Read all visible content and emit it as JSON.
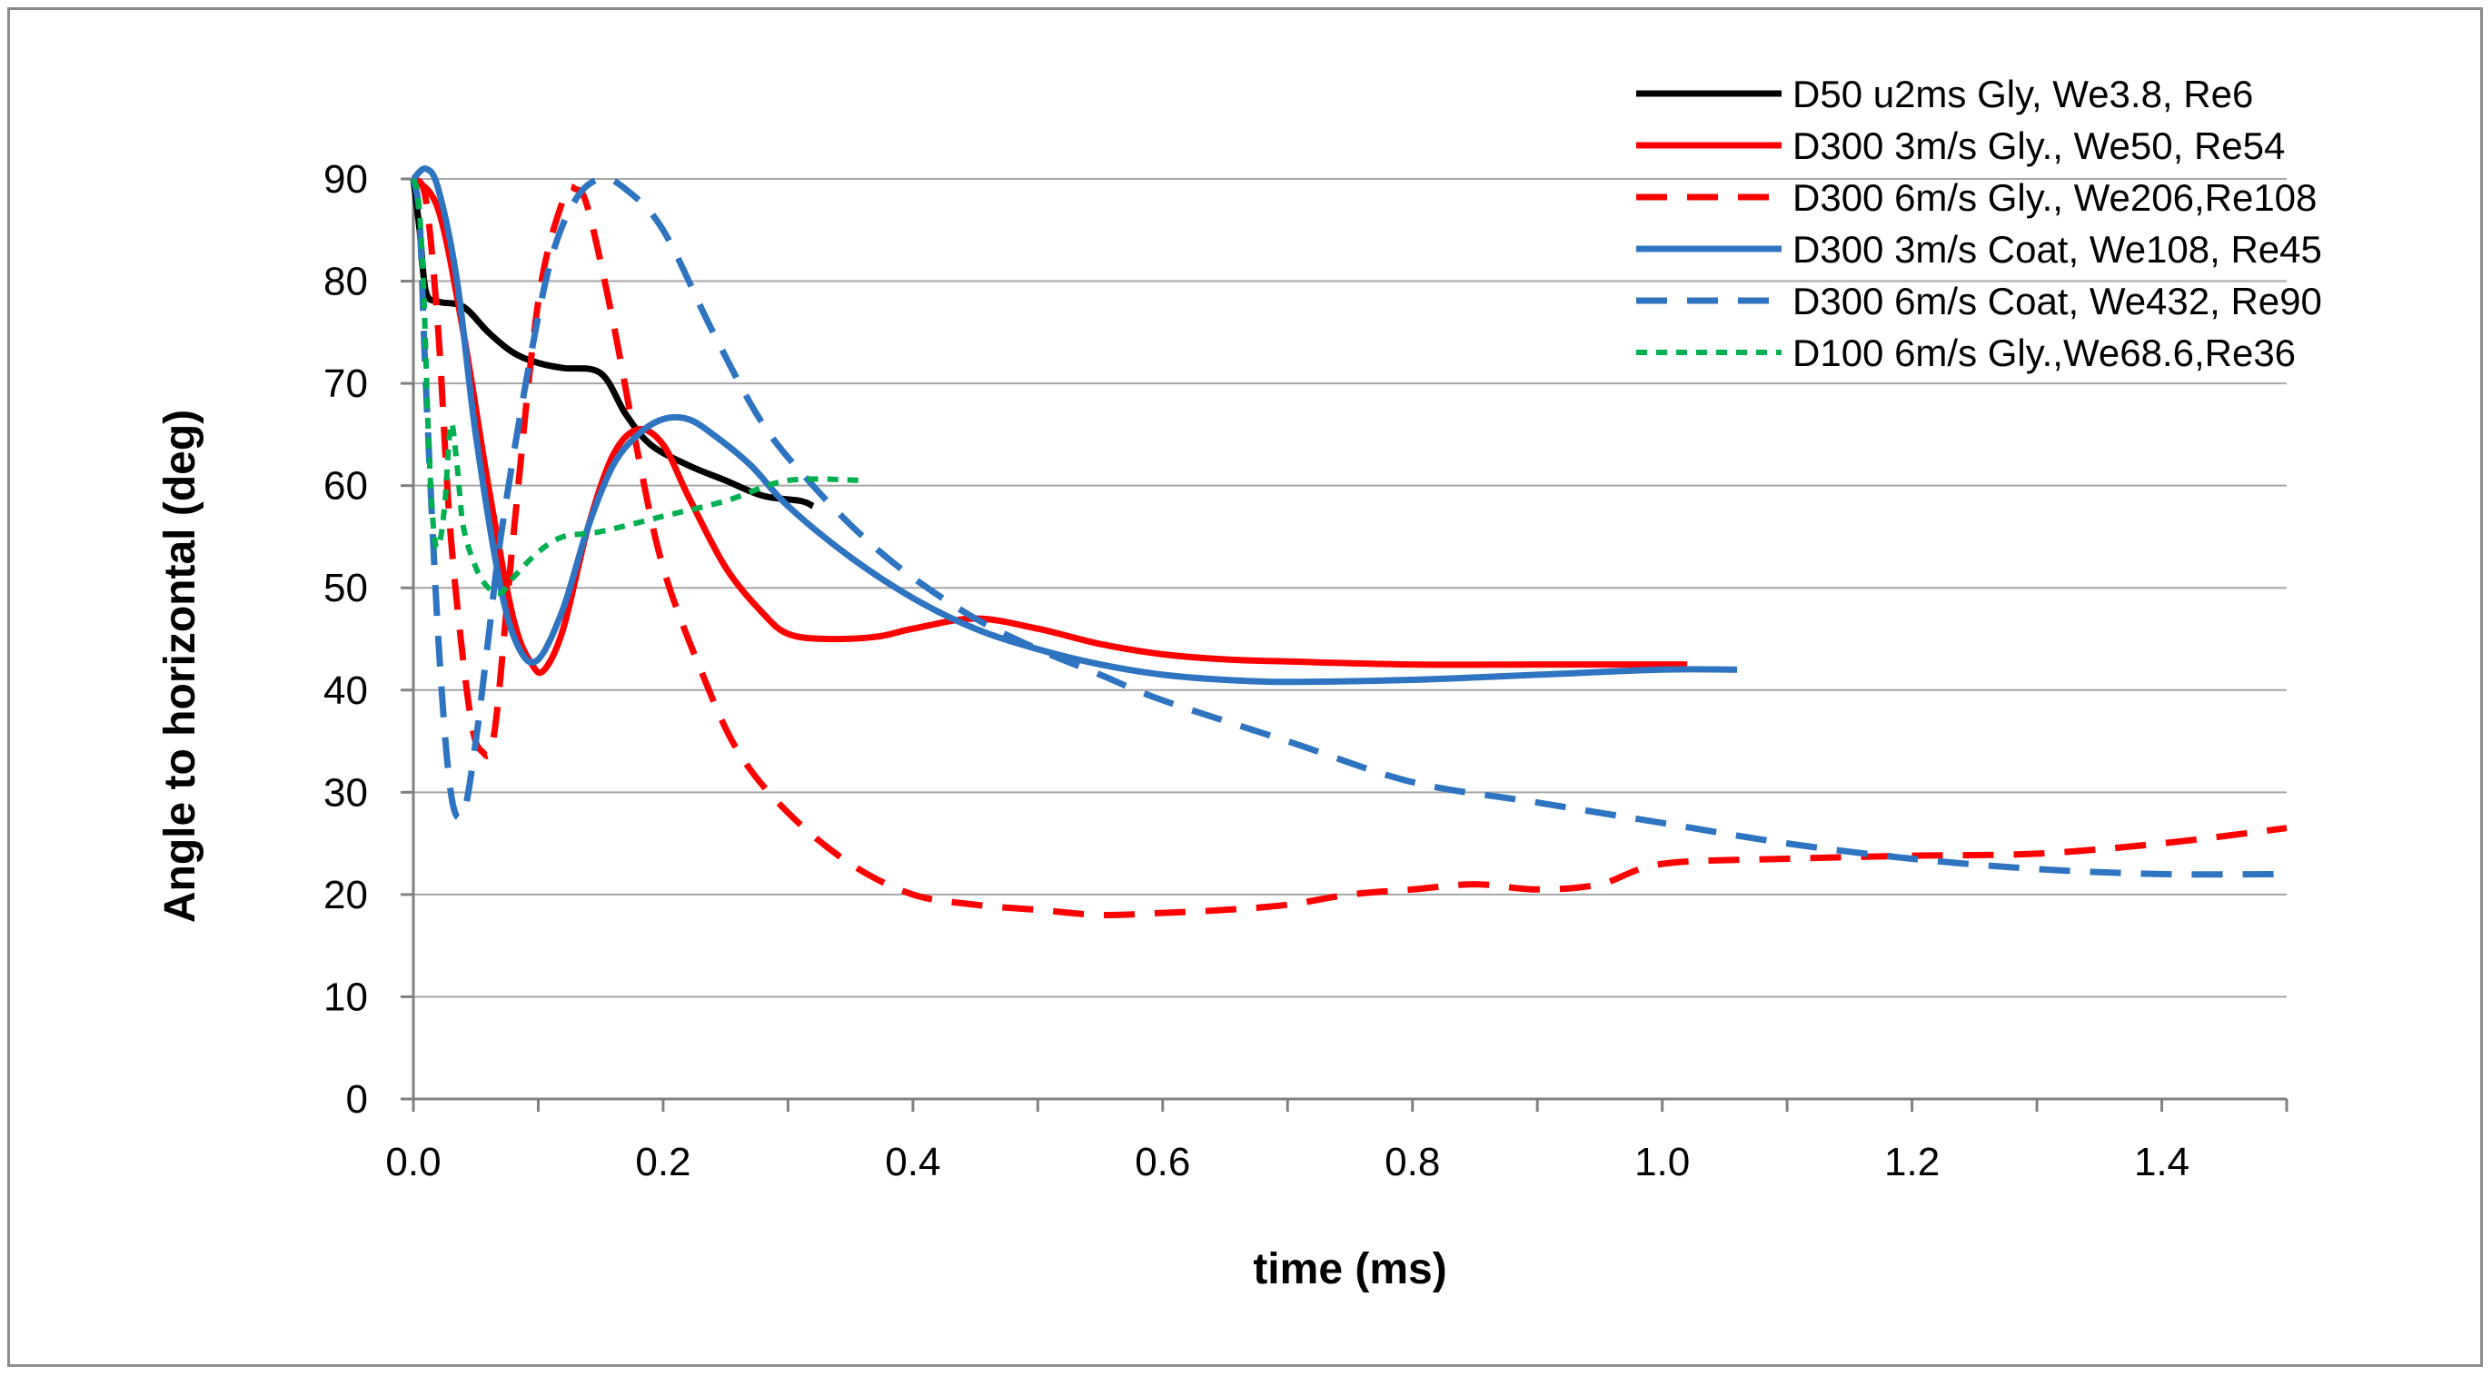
{
  "chart_data": {
    "type": "line",
    "title": "",
    "xlabel": "time (ms)",
    "ylabel": "Angle to horizontal (deg)",
    "xlim": [
      0,
      1.5
    ],
    "ylim": [
      0,
      90
    ],
    "xticks": [
      0,
      0.2,
      0.4,
      0.6,
      0.8,
      1.0,
      1.2,
      1.4
    ],
    "xtick_labels": [
      "0.0",
      "0.2",
      "0.4",
      "0.6",
      "0.8",
      "1.0",
      "1.2",
      "1.4"
    ],
    "yticks": [
      0,
      10,
      20,
      30,
      40,
      50,
      60,
      70,
      80,
      90
    ],
    "ytick_labels": [
      "0",
      "10",
      "20",
      "30",
      "40",
      "50",
      "60",
      "70",
      "80",
      "90"
    ],
    "grid": "horizontal",
    "legend_position": "top-right",
    "series": [
      {
        "name": "D50 u2ms Gly, We3.8, Re6",
        "color": "#000000",
        "dash": "solid",
        "x": [
          0,
          0.005,
          0.01,
          0.02,
          0.04,
          0.06,
          0.08,
          0.1,
          0.12,
          0.15,
          0.17,
          0.19,
          0.22,
          0.25,
          0.28,
          0.31,
          0.32
        ],
        "y": [
          90,
          85,
          79,
          78,
          77.5,
          75,
          73,
          72,
          71.5,
          71,
          67,
          64,
          62,
          60.5,
          59,
          58.5,
          58
        ]
      },
      {
        "name": "D300 3m/s Gly., We50, Re54",
        "color": "#ff0000",
        "dash": "solid",
        "x": [
          0,
          0.02,
          0.04,
          0.06,
          0.08,
          0.095,
          0.105,
          0.12,
          0.14,
          0.16,
          0.18,
          0.2,
          0.22,
          0.25,
          0.28,
          0.3,
          0.33,
          0.37,
          0.4,
          0.45,
          0.5,
          0.55,
          0.6,
          0.65,
          0.7,
          0.8,
          0.9,
          1.0,
          1.02
        ],
        "y": [
          90,
          87,
          75,
          60,
          47,
          42.5,
          42,
          46,
          56,
          63,
          65.5,
          64,
          59,
          52,
          47.5,
          45.5,
          45,
          45.2,
          46,
          47,
          46,
          44.5,
          43.5,
          43,
          42.8,
          42.5,
          42.5,
          42.5,
          42.5
        ]
      },
      {
        "name": "D300 6m/s Gly., We206,Re108",
        "color": "#ff0000",
        "dash": "dashed",
        "x": [
          0,
          0.01,
          0.02,
          0.03,
          0.045,
          0.055,
          0.065,
          0.08,
          0.1,
          0.12,
          0.13,
          0.14,
          0.16,
          0.18,
          0.2,
          0.23,
          0.26,
          0.3,
          0.35,
          0.4,
          0.45,
          0.5,
          0.55,
          0.6,
          0.65,
          0.7,
          0.75,
          0.8,
          0.85,
          0.9,
          0.95,
          1.0,
          1.1,
          1.2,
          1.3,
          1.4,
          1.5
        ],
        "y": [
          90,
          88,
          75,
          55,
          38,
          34,
          36,
          55,
          78,
          88,
          89,
          87,
          76,
          63,
          52,
          42,
          34,
          28,
          23,
          20,
          19,
          18.5,
          18,
          18.2,
          18.5,
          19,
          20,
          20.5,
          21,
          20.5,
          21,
          23,
          23.5,
          23.8,
          24,
          25,
          26.5
        ]
      },
      {
        "name": "D300 3m/s Coat, We108, Re45",
        "color": "#2e74c0",
        "dash": "solid",
        "x": [
          0,
          0.01,
          0.02,
          0.035,
          0.05,
          0.07,
          0.085,
          0.1,
          0.12,
          0.14,
          0.16,
          0.18,
          0.2,
          0.22,
          0.24,
          0.27,
          0.3,
          0.35,
          0.4,
          0.45,
          0.5,
          0.55,
          0.6,
          0.65,
          0.7,
          0.8,
          0.9,
          1.0,
          1.06
        ],
        "y": [
          90,
          91,
          89,
          80,
          65,
          50,
          44,
          43,
          48,
          56,
          62,
          65,
          66.5,
          66.5,
          65,
          62,
          58,
          53,
          49,
          46,
          44,
          42.5,
          41.5,
          41,
          40.8,
          41,
          41.5,
          42,
          42
        ]
      },
      {
        "name": "D300 6m/s Coat, We432, Re90",
        "color": "#2e74c0",
        "dash": "dashed",
        "x": [
          0,
          0.005,
          0.01,
          0.02,
          0.03,
          0.04,
          0.05,
          0.06,
          0.07,
          0.09,
          0.11,
          0.13,
          0.15,
          0.17,
          0.2,
          0.24,
          0.28,
          0.32,
          0.36,
          0.4,
          0.45,
          0.5,
          0.55,
          0.6,
          0.7,
          0.8,
          0.9,
          1.0,
          1.1,
          1.2,
          1.3,
          1.4,
          1.5
        ],
        "y": [
          90,
          86,
          70,
          45,
          30,
          28,
          35,
          45,
          55,
          70,
          82,
          88,
          90,
          89,
          85,
          75,
          66,
          60,
          55,
          51,
          47,
          44,
          41.5,
          39,
          35,
          31,
          29,
          27,
          25,
          23.5,
          22.5,
          22,
          22
        ]
      },
      {
        "name": "D100 6m/s Gly.,We68.6,Re36",
        "color": "#00b050",
        "dash": "dotted",
        "x": [
          0,
          0.004,
          0.008,
          0.012,
          0.016,
          0.02,
          0.025,
          0.03,
          0.035,
          0.04,
          0.05,
          0.06,
          0.07,
          0.08,
          0.1,
          0.12,
          0.15,
          0.2,
          0.25,
          0.3,
          0.36
        ],
        "y": [
          90,
          88,
          80,
          65,
          56,
          54,
          58,
          66,
          62,
          56,
          52,
          50,
          49.5,
          51,
          53.5,
          55,
          55.5,
          57,
          58.5,
          60.5,
          60.5
        ]
      }
    ]
  }
}
